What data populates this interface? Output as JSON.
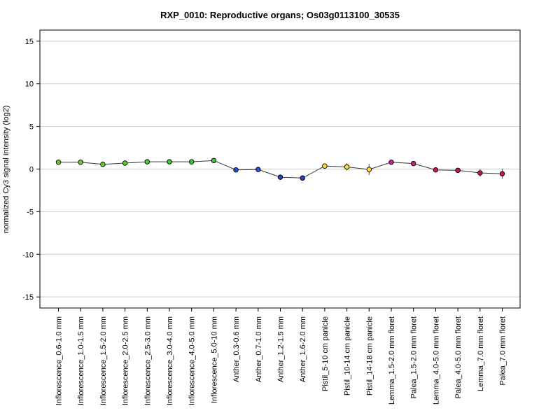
{
  "chart_data": {
    "type": "line",
    "title": "RXP_0010: Reproductive organs; Os03g0113100_30535",
    "xlabel": "",
    "ylabel": "normalized Cy3 signal intensity (log2)",
    "ylim": [
      -16.3,
      16.3
    ],
    "yticks": [
      15,
      10,
      5,
      0,
      -5,
      -10,
      -15
    ],
    "grid": true,
    "line_color": "#333333",
    "categories": [
      "Inflorescence_0.6-1.0 mm",
      "Inflorescence_1.0-1.5 mm",
      "Inflorescence_1.5-2.0 mm",
      "Inflorescence_2.0-2.5 mm",
      "Inflorescence_2.5-3.0 mm",
      "Inflorescence_3.0-4.0 mm",
      "Inflorescence_4.0-5.0 mm",
      "Inflorescence_5.0-10 mm",
      "Anther_0.3-0.6 mm",
      "Anther_0.7-1.0 mm",
      "Anther_1.2-1.5 mm",
      "Anther_1.6-2.0 mm",
      "Pistil_5-10 cm panicle",
      "Pistil_10-14 cm panicle",
      "Pistil_14-18 cm panicle",
      "Lemma_1.5-2.0 mm floret",
      "Palea_1.5-2.0 mm floret",
      "Lemma_4.0-5.0 mm floret",
      "Palea_4.0-5.0 mm floret",
      "Lemma_7.0 mm floret",
      "Palea_7.0 mm floret"
    ],
    "values": [
      0.8,
      0.8,
      0.55,
      0.7,
      0.85,
      0.85,
      0.85,
      1.0,
      -0.1,
      -0.05,
      -0.95,
      -1.05,
      0.35,
      0.25,
      -0.05,
      0.8,
      0.65,
      -0.1,
      -0.15,
      -0.45,
      -0.55
    ],
    "errors": [
      0.15,
      0.1,
      0.1,
      0.1,
      0.1,
      0.1,
      0.1,
      0.15,
      0.2,
      0.1,
      0.1,
      0.1,
      0.25,
      0.45,
      0.65,
      0.1,
      0.1,
      0.15,
      0.15,
      0.45,
      0.6
    ],
    "point_colors": [
      "#66cc33",
      "#66cc33",
      "#66cc33",
      "#55cc33",
      "#44cc33",
      "#33cc33",
      "#33cc33",
      "#33cc33",
      "#2255cc",
      "#2255cc",
      "#2244bb",
      "#2244bb",
      "#ffdd33",
      "#ffdd33",
      "#ffdd33",
      "#cc2299",
      "#cc2288",
      "#cc1166",
      "#cc1166",
      "#cc1155",
      "#cc1144"
    ]
  }
}
